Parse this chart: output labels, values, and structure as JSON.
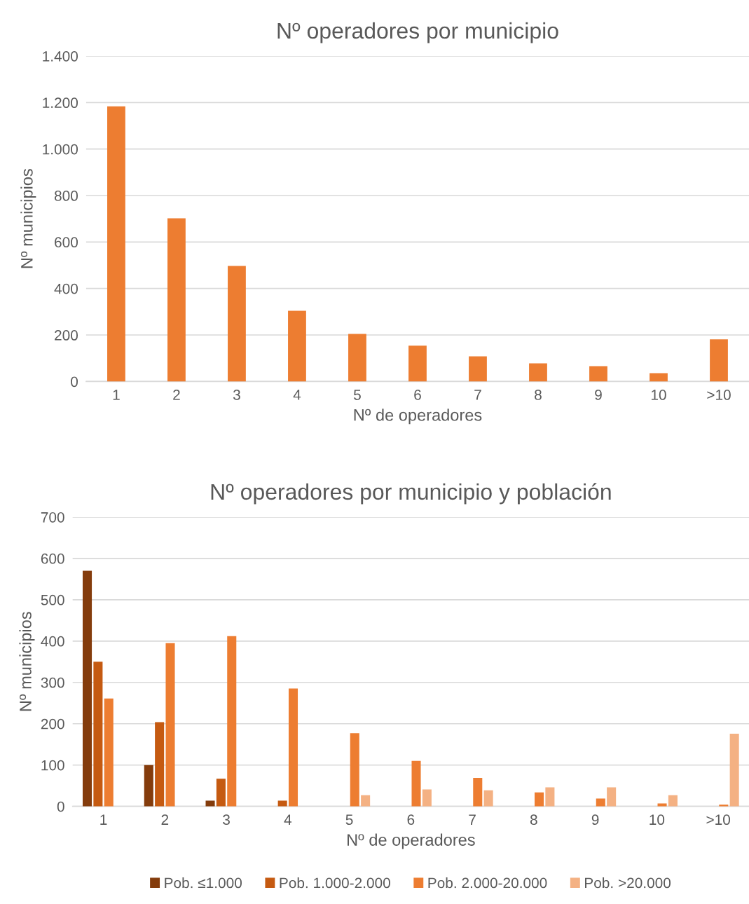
{
  "chart_data": [
    {
      "type": "bar",
      "title": "Nº operadores por municipio",
      "xlabel": "Nº de operadores",
      "ylabel": "Nº municipios",
      "categories": [
        "1",
        "2",
        "3",
        "4",
        "5",
        "6",
        "7",
        "8",
        "9",
        "10",
        ">10"
      ],
      "series": [
        {
          "color": "#ed7d31",
          "values": [
            1184,
            702,
            497,
            304,
            205,
            154,
            108,
            78,
            66,
            36,
            181
          ]
        }
      ],
      "ylim": [
        0,
        1400
      ],
      "yticks": [
        {
          "value": 0,
          "label": "0"
        },
        {
          "value": 200,
          "label": "200"
        },
        {
          "value": 400,
          "label": "400"
        },
        {
          "value": 600,
          "label": "600"
        },
        {
          "value": 800,
          "label": "800"
        },
        {
          "value": 1000,
          "label": "1.000"
        },
        {
          "value": 1200,
          "label": "1.200"
        },
        {
          "value": 1400,
          "label": "1.400"
        }
      ],
      "grid": "y"
    },
    {
      "type": "bar",
      "title": "Nº operadores por municipio y población",
      "xlabel": "Nº de operadores",
      "ylabel": "Nº municipios",
      "categories": [
        "1",
        "2",
        "3",
        "4",
        "5",
        "6",
        "7",
        "8",
        "9",
        "10",
        ">10"
      ],
      "series": [
        {
          "name": "Pob. ≤1.000",
          "color": "#843c0c",
          "values": [
            570,
            100,
            14,
            null,
            null,
            0,
            0,
            0,
            0,
            0,
            0
          ]
        },
        {
          "name": "Pob. 1.000-2.000",
          "color": "#c55a11",
          "values": [
            350,
            204,
            67,
            14,
            null,
            0,
            0,
            0,
            0,
            0,
            0
          ]
        },
        {
          "name": "Pob. 2.000-20.000",
          "color": "#ed7d31",
          "values": [
            261,
            395,
            412,
            285,
            177,
            110,
            69,
            34,
            19,
            7,
            4
          ]
        },
        {
          "name": "Pob. >20.000",
          "color": "#f4b183",
          "values": [
            0,
            0,
            null,
            null,
            27,
            41,
            39,
            46,
            46,
            27,
            176
          ]
        }
      ],
      "ylim": [
        0,
        700
      ],
      "yticks": [
        0,
        100,
        200,
        300,
        400,
        500,
        600,
        700
      ],
      "grid": "y",
      "legend": "bottom"
    }
  ]
}
